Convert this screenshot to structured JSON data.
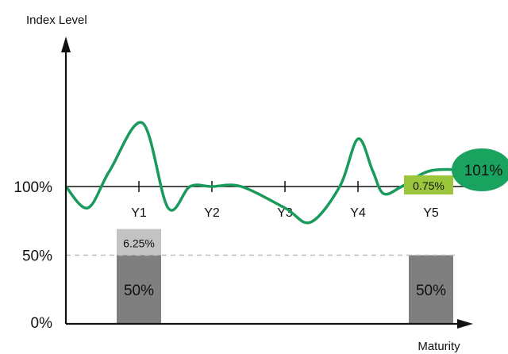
{
  "chart_data": {
    "type": "line",
    "ylabel": "Index Level",
    "xlabel": "Maturity",
    "y_ticks": [
      "100%",
      "50%",
      "0%"
    ],
    "categories": [
      "Y1",
      "Y2",
      "Y3",
      "Y4",
      "Y5"
    ],
    "series": [
      {
        "x": [
          0,
          0.3,
          0.6,
          1.05,
          1.4,
          1.7,
          2.0,
          2.4,
          3.0,
          3.35,
          3.75,
          4.0,
          4.2,
          4.35,
          4.6,
          5.0,
          5.6
        ],
        "values": [
          100,
          97,
          101,
          104,
          97,
          100,
          100,
          100,
          97,
          95,
          100,
          103,
          101,
          99,
          100,
          101,
          101
        ],
        "end_label": "101%"
      }
    ],
    "bars": [
      {
        "category": "Y1",
        "base_value": 50,
        "base_label": "50%",
        "top_value": 6.25,
        "top_label": "6.25%"
      },
      {
        "category": "Y5",
        "base_value": 50,
        "base_label": "50%"
      }
    ],
    "coupon_label": "0.75%",
    "reference_lines": [
      50
    ],
    "colors": {
      "line": "#1a9a5c",
      "end_bubble": "#1aa35f",
      "coupon_box": "#9bc63b",
      "bar_base": "#7f7f7f",
      "bar_top": "#c3c3c3",
      "axis": "#111111",
      "dashed_line": "#bdbdbd"
    }
  }
}
